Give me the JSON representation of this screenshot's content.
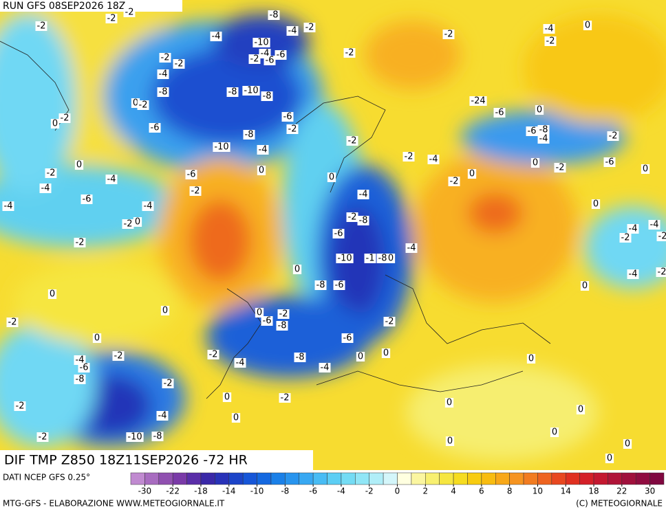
{
  "header": {
    "title": "RUN GFS 08SEP2026 18Z"
  },
  "map": {
    "caption": "DIF TMP Z850 18Z11SEP2026 -72 HR",
    "contour_labels": [
      "-2",
      "-2",
      "-2",
      "-8",
      "-4",
      "-10",
      "-4",
      "-2",
      "-4",
      "-2",
      "-6",
      "-6",
      "-2",
      "-2",
      "-4",
      "-8",
      "-8",
      "-10",
      "-8",
      "0",
      "-2",
      "-2",
      "0",
      "-6",
      "-6",
      "-2",
      "-8",
      "-10",
      "-4",
      "-2",
      "0",
      "-2",
      "-4",
      "-4",
      "-6",
      "0",
      "0",
      "-2",
      "-4",
      "-6",
      "-4",
      "-2",
      "0",
      "-2",
      "-4",
      "-2",
      "-8",
      "-6",
      "-10",
      "-1",
      "-8",
      "0",
      "-4",
      "0",
      "-8",
      "-6",
      "0",
      "0",
      "-2",
      "0",
      "-6",
      "-2",
      "-8",
      "-2",
      "0",
      "-6",
      "-4",
      "-6",
      "-2",
      "-2",
      "-4",
      "-8",
      "0",
      "0",
      "-4",
      "-8",
      "-2",
      "0",
      "-2",
      "-4",
      "-2",
      "0",
      "-2",
      "-10",
      "-8",
      "-2",
      "-4",
      "0",
      "-2",
      "-2",
      "-24",
      "-6",
      "0",
      "-6",
      "-8",
      "-4",
      "-2",
      "-2",
      "-4",
      "-2",
      "0",
      "0",
      "-2",
      "-6",
      "0",
      "0",
      "-4",
      "-4",
      "-2",
      "-2",
      "-4",
      "-2",
      "0",
      "0",
      "0",
      "0",
      "0",
      "0",
      "0",
      "0"
    ]
  },
  "footer": {
    "source": "DATI NCEP GFS 0.25°",
    "credit": "MTG-GFS - ELABORAZIONE WWW.METEOGIORNALE.IT",
    "copyright": "(C) METEOGIORNALE"
  },
  "colorbar": {
    "ticks": [
      -30,
      -22,
      -18,
      -14,
      -10,
      -8,
      -6,
      -4,
      -2,
      0,
      2,
      4,
      6,
      8,
      10,
      14,
      18,
      22,
      30
    ],
    "colors": [
      "#c08ad0",
      "#a86cc0",
      "#9050b0",
      "#7a3aa8",
      "#5a2ea8",
      "#3a28a8",
      "#2832b8",
      "#1c44c8",
      "#1656d8",
      "#1468e0",
      "#1a80e8",
      "#2894ee",
      "#38a8f2",
      "#48bcf4",
      "#5ccef4",
      "#74dcf4",
      "#90e6f6",
      "#b0eef8",
      "#d4f6fa",
      "#ffffe0",
      "#fbf6a0",
      "#f8f070",
      "#f6e640",
      "#f6dc20",
      "#f8cc10",
      "#f8bc10",
      "#f8a818",
      "#f69420",
      "#f27c20",
      "#ee6420",
      "#e84820",
      "#e03020",
      "#d42028",
      "#c41830",
      "#b01438",
      "#a0103c",
      "#900c40",
      "#800840"
    ]
  }
}
